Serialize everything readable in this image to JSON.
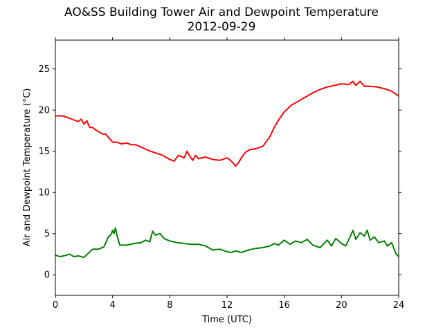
{
  "chart_data": {
    "type": "line",
    "title": "AO&SS Building Tower Air and Dewpoint Temperature",
    "subtitle": "2012-09-29",
    "xlabel": "Time (UTC)",
    "ylabel": "Air and Dewpoint Temperature (°C)",
    "xlim": [
      0,
      24
    ],
    "ylim": [
      -2.5,
      28.5
    ],
    "xticks": [
      0,
      4,
      8,
      12,
      16,
      20,
      24
    ],
    "yticks": [
      0,
      5,
      10,
      15,
      20,
      25
    ],
    "grid": false,
    "legend": "none",
    "series": [
      {
        "color": "#ff0000",
        "x": [
          0,
          0.5,
          1.0,
          1.3,
          1.6,
          1.8,
          2.0,
          2.2,
          2.4,
          2.6,
          2.8,
          3.0,
          3.3,
          3.5,
          3.8,
          4.0,
          4.3,
          4.6,
          5.0,
          5.3,
          5.6,
          6.0,
          6.5,
          7.0,
          7.5,
          8.0,
          8.3,
          8.6,
          9.0,
          9.2,
          9.4,
          9.6,
          9.8,
          10.0,
          10.5,
          11.0,
          11.5,
          12.0,
          12.3,
          12.6,
          12.8,
          13.0,
          13.3,
          13.6,
          14.0,
          14.5,
          15.0,
          15.3,
          15.6,
          16.0,
          16.5,
          17.0,
          17.5,
          18.0,
          18.5,
          19.0,
          19.5,
          20.0,
          20.5,
          20.8,
          21.0,
          21.3,
          21.6,
          22.0,
          22.5,
          23.0,
          23.5,
          24.0
        ],
        "y": [
          19.3,
          19.3,
          19.0,
          18.8,
          18.6,
          18.9,
          18.3,
          18.7,
          17.9,
          17.9,
          17.6,
          17.4,
          17.1,
          17.1,
          16.5,
          16.1,
          16.1,
          15.9,
          16.0,
          15.8,
          15.8,
          15.5,
          15.1,
          14.8,
          14.5,
          14.0,
          13.8,
          14.5,
          14.2,
          15.0,
          14.4,
          13.9,
          14.5,
          14.1,
          14.3,
          14.0,
          13.9,
          14.2,
          13.8,
          13.2,
          13.6,
          14.2,
          14.9,
          15.2,
          15.3,
          15.6,
          16.8,
          17.9,
          18.8,
          19.8,
          20.6,
          21.1,
          21.6,
          22.1,
          22.5,
          22.8,
          23.0,
          23.2,
          23.1,
          23.5,
          23.0,
          23.5,
          22.9,
          22.9,
          22.8,
          22.6,
          22.3,
          21.7
        ]
      },
      {
        "color": "#008000",
        "x": [
          0,
          0.3,
          0.6,
          1.0,
          1.3,
          1.6,
          2.0,
          2.3,
          2.6,
          3.0,
          3.4,
          3.7,
          3.9,
          4.0,
          4.1,
          4.2,
          4.3,
          4.5,
          5.0,
          5.5,
          6.0,
          6.3,
          6.6,
          6.8,
          7.0,
          7.3,
          7.6,
          8.0,
          8.5,
          9.0,
          9.5,
          10.0,
          10.5,
          11.0,
          11.5,
          12.0,
          12.3,
          12.6,
          13.0,
          13.5,
          14.0,
          14.5,
          15.0,
          15.3,
          15.6,
          16.0,
          16.4,
          16.8,
          17.2,
          17.6,
          18.0,
          18.5,
          19.0,
          19.3,
          19.6,
          20.0,
          20.3,
          20.6,
          20.8,
          21.0,
          21.3,
          21.6,
          21.8,
          22.0,
          22.3,
          22.6,
          23.0,
          23.2,
          23.5,
          23.8,
          24.0
        ],
        "y": [
          2.4,
          2.2,
          2.3,
          2.5,
          2.2,
          2.3,
          2.1,
          2.6,
          3.1,
          3.1,
          3.4,
          4.6,
          4.9,
          5.4,
          5.0,
          5.7,
          4.8,
          3.6,
          3.6,
          3.8,
          3.9,
          4.2,
          4.0,
          5.3,
          4.8,
          5.0,
          4.4,
          4.1,
          3.9,
          3.8,
          3.7,
          3.7,
          3.5,
          3.0,
          3.1,
          2.8,
          2.7,
          2.9,
          2.7,
          3.0,
          3.2,
          3.3,
          3.5,
          3.8,
          3.6,
          4.2,
          3.7,
          4.1,
          3.9,
          4.3,
          3.6,
          3.3,
          4.2,
          3.5,
          4.4,
          3.8,
          3.5,
          4.6,
          5.4,
          4.3,
          5.1,
          4.7,
          5.4,
          4.2,
          4.6,
          3.9,
          4.1,
          3.5,
          3.9,
          2.6,
          2.2
        ]
      }
    ]
  }
}
